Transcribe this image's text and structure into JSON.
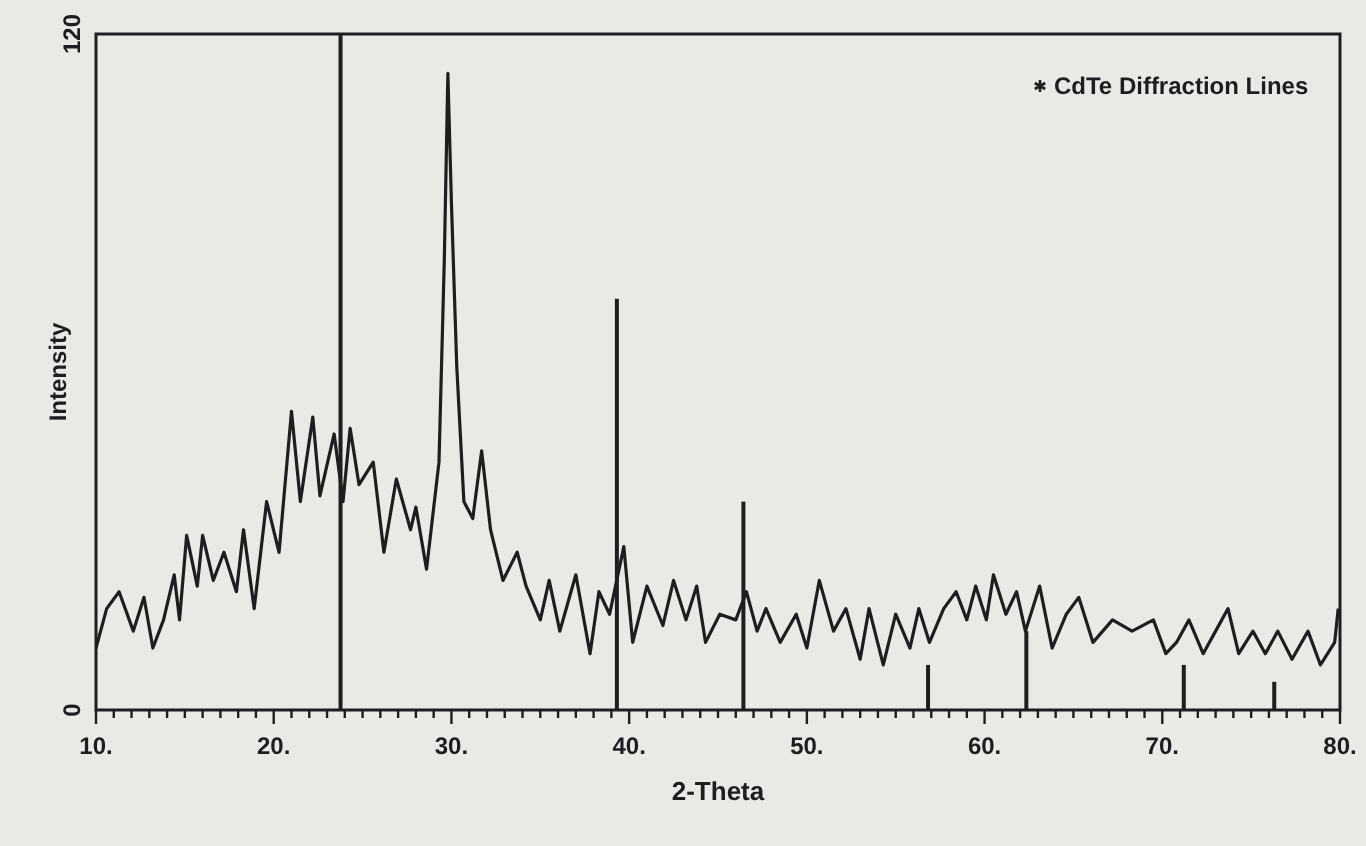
{
  "chart_data": {
    "type": "line",
    "xlabel": "2-Theta",
    "ylabel": "Intensity",
    "xlim": [
      10,
      80
    ],
    "ylim": [
      0,
      120
    ],
    "xticks": [
      {
        "value": 10,
        "label": "10."
      },
      {
        "value": 11,
        "label": null
      },
      {
        "value": 12,
        "label": null
      },
      {
        "value": 13,
        "label": null
      },
      {
        "value": 14,
        "label": null
      },
      {
        "value": 15,
        "label": null
      },
      {
        "value": 16,
        "label": null
      },
      {
        "value": 17,
        "label": null
      },
      {
        "value": 18,
        "label": null
      },
      {
        "value": 19,
        "label": null
      },
      {
        "value": 20,
        "label": "20."
      },
      {
        "value": 21,
        "label": null
      },
      {
        "value": 22,
        "label": null
      },
      {
        "value": 23,
        "label": null
      },
      {
        "value": 24,
        "label": null
      },
      {
        "value": 25,
        "label": null
      },
      {
        "value": 26,
        "label": null
      },
      {
        "value": 27,
        "label": null
      },
      {
        "value": 28,
        "label": null
      },
      {
        "value": 29,
        "label": null
      },
      {
        "value": 30,
        "label": "30."
      },
      {
        "value": 31,
        "label": null
      },
      {
        "value": 32,
        "label": null
      },
      {
        "value": 33,
        "label": null
      },
      {
        "value": 34,
        "label": null
      },
      {
        "value": 35,
        "label": null
      },
      {
        "value": 36,
        "label": null
      },
      {
        "value": 37,
        "label": null
      },
      {
        "value": 38,
        "label": null
      },
      {
        "value": 39,
        "label": null
      },
      {
        "value": 40,
        "label": "40."
      },
      {
        "value": 41,
        "label": null
      },
      {
        "value": 42,
        "label": null
      },
      {
        "value": 43,
        "label": null
      },
      {
        "value": 44,
        "label": null
      },
      {
        "value": 45,
        "label": null
      },
      {
        "value": 46,
        "label": null
      },
      {
        "value": 47,
        "label": null
      },
      {
        "value": 48,
        "label": null
      },
      {
        "value": 49,
        "label": null
      },
      {
        "value": 50,
        "label": "50."
      },
      {
        "value": 51,
        "label": null
      },
      {
        "value": 52,
        "label": null
      },
      {
        "value": 53,
        "label": null
      },
      {
        "value": 54,
        "label": null
      },
      {
        "value": 55,
        "label": null
      },
      {
        "value": 56,
        "label": null
      },
      {
        "value": 57,
        "label": null
      },
      {
        "value": 58,
        "label": null
      },
      {
        "value": 59,
        "label": null
      },
      {
        "value": 60,
        "label": "60."
      },
      {
        "value": 61,
        "label": null
      },
      {
        "value": 62,
        "label": null
      },
      {
        "value": 63,
        "label": null
      },
      {
        "value": 64,
        "label": null
      },
      {
        "value": 65,
        "label": null
      },
      {
        "value": 66,
        "label": null
      },
      {
        "value": 67,
        "label": null
      },
      {
        "value": 68,
        "label": null
      },
      {
        "value": 69,
        "label": null
      },
      {
        "value": 70,
        "label": "70."
      },
      {
        "value": 71,
        "label": null
      },
      {
        "value": 72,
        "label": null
      },
      {
        "value": 73,
        "label": null
      },
      {
        "value": 74,
        "label": null
      },
      {
        "value": 75,
        "label": null
      },
      {
        "value": 76,
        "label": null
      },
      {
        "value": 77,
        "label": null
      },
      {
        "value": 78,
        "label": null
      },
      {
        "value": 79,
        "label": null
      },
      {
        "value": 80,
        "label": "80."
      }
    ],
    "yticks": [
      0,
      120
    ],
    "grid": false,
    "legend": "top right",
    "series": [
      {
        "color": "#1e1e1e",
        "x": [
          10.0,
          10.6,
          11.3,
          12.1,
          12.7,
          13.2,
          13.8,
          14.4,
          14.7,
          15.1,
          15.7,
          16.0,
          16.6,
          17.2,
          17.9,
          18.3,
          18.9,
          19.6,
          20.3,
          21.0,
          21.5,
          22.2,
          22.6,
          23.4,
          23.9,
          24.3,
          24.8,
          25.6,
          26.2,
          26.9,
          27.7,
          28.0,
          28.6,
          29.3,
          29.6,
          29.8,
          30.0,
          30.3,
          30.7,
          31.2,
          31.7,
          32.2,
          32.9,
          33.7,
          34.2,
          35.0,
          35.5,
          36.1,
          37.0,
          37.8,
          38.3,
          38.9,
          39.7,
          40.2,
          41.0,
          41.9,
          42.5,
          43.2,
          43.8,
          44.3,
          45.1,
          46.0,
          46.6,
          47.2,
          47.7,
          48.5,
          49.4,
          50.0,
          50.7,
          51.5,
          52.2,
          53.0,
          53.5,
          54.3,
          55.0,
          55.8,
          56.3,
          56.9,
          57.7,
          58.4,
          59.0,
          59.5,
          60.1,
          60.5,
          61.2,
          61.8,
          62.3,
          63.1,
          63.8,
          64.6,
          65.3,
          66.1,
          67.2,
          68.3,
          69.5,
          70.2,
          70.8,
          71.5,
          72.3,
          73.0,
          73.7,
          74.3,
          75.1,
          75.8,
          76.5,
          77.3,
          78.2,
          78.9,
          79.7,
          79.9
        ],
        "values": [
          11,
          18,
          21,
          14,
          20,
          11,
          16,
          24,
          16,
          31,
          22,
          31,
          23,
          28,
          21,
          32,
          18,
          37,
          28,
          53,
          37,
          52,
          38,
          49,
          37,
          50,
          40,
          44,
          28,
          41,
          32,
          36,
          25,
          44,
          80,
          113,
          90,
          61,
          37,
          34,
          46,
          32,
          23,
          28,
          22,
          16,
          23,
          14,
          24,
          10,
          21,
          17,
          29,
          12,
          22,
          15,
          23,
          16,
          22,
          12,
          17,
          16,
          21,
          14,
          18,
          12,
          17,
          11,
          23,
          14,
          18,
          9,
          18,
          8,
          17,
          11,
          18,
          12,
          18,
          21,
          16,
          22,
          16,
          24,
          17,
          21,
          14,
          22,
          11,
          17,
          20,
          12,
          16,
          14,
          16,
          10,
          12,
          16,
          10,
          14,
          18,
          10,
          14,
          10,
          14,
          9,
          14,
          8,
          12,
          18
        ]
      },
      {
        "type": "bar",
        "name": "CdTe Diffraction Lines",
        "color": "#1e1e1e",
        "x": [
          23.76,
          39.31,
          46.43,
          56.82,
          62.35,
          71.21,
          76.3
        ],
        "values": [
          120,
          73,
          37,
          8,
          14,
          8,
          5
        ]
      }
    ]
  }
}
